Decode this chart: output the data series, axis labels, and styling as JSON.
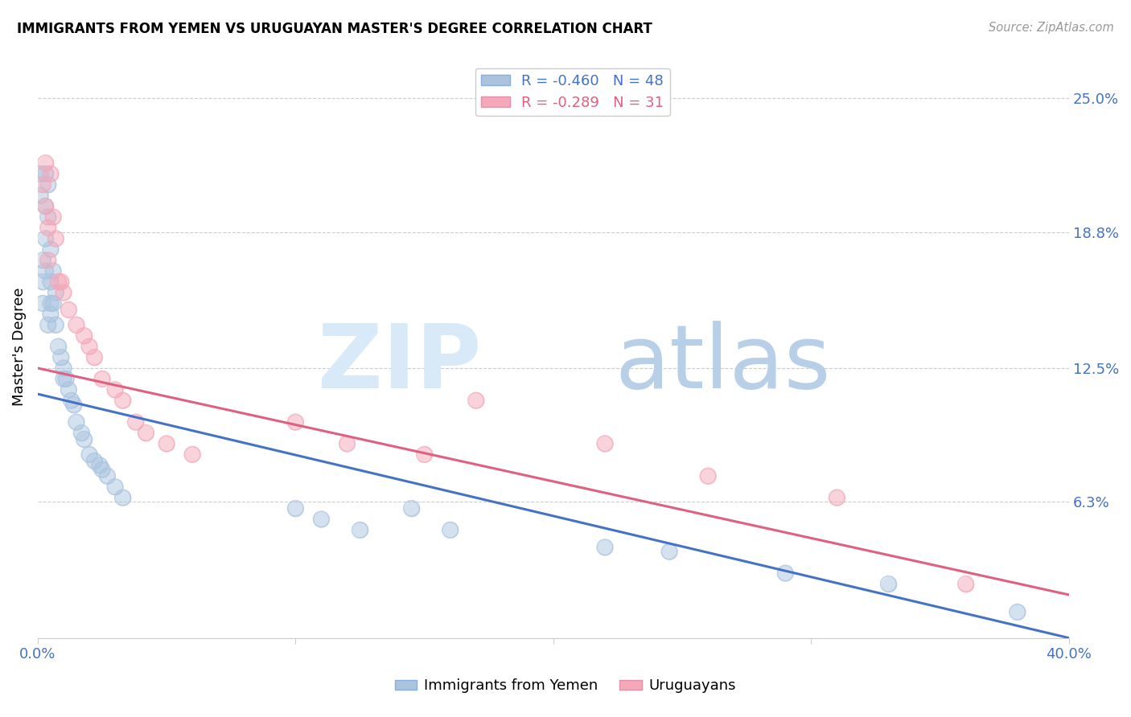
{
  "title": "IMMIGRANTS FROM YEMEN VS URUGUAYAN MASTER'S DEGREE CORRELATION CHART",
  "source": "Source: ZipAtlas.com",
  "ylabel": "Master's Degree",
  "yticks": [
    0.0,
    0.063,
    0.125,
    0.188,
    0.25
  ],
  "ytick_labels": [
    "",
    "6.3%",
    "12.5%",
    "18.8%",
    "25.0%"
  ],
  "xticks": [
    0.0,
    0.1,
    0.2,
    0.3,
    0.4
  ],
  "xtick_labels": [
    "0.0%",
    "",
    "",
    "",
    "40.0%"
  ],
  "xlim": [
    0.0,
    0.4
  ],
  "ylim": [
    0.0,
    0.27
  ],
  "blue_scatter_x": [
    0.001,
    0.001,
    0.002,
    0.002,
    0.002,
    0.003,
    0.003,
    0.003,
    0.003,
    0.004,
    0.004,
    0.004,
    0.005,
    0.005,
    0.005,
    0.005,
    0.006,
    0.006,
    0.007,
    0.007,
    0.008,
    0.009,
    0.01,
    0.01,
    0.011,
    0.012,
    0.013,
    0.014,
    0.015,
    0.017,
    0.018,
    0.02,
    0.022,
    0.024,
    0.025,
    0.027,
    0.03,
    0.033,
    0.1,
    0.11,
    0.125,
    0.145,
    0.16,
    0.22,
    0.245,
    0.29,
    0.33,
    0.38
  ],
  "blue_scatter_y": [
    0.215,
    0.205,
    0.175,
    0.165,
    0.155,
    0.215,
    0.2,
    0.185,
    0.17,
    0.21,
    0.195,
    0.145,
    0.18,
    0.165,
    0.155,
    0.15,
    0.17,
    0.155,
    0.16,
    0.145,
    0.135,
    0.13,
    0.125,
    0.12,
    0.12,
    0.115,
    0.11,
    0.108,
    0.1,
    0.095,
    0.092,
    0.085,
    0.082,
    0.08,
    0.078,
    0.075,
    0.07,
    0.065,
    0.06,
    0.055,
    0.05,
    0.06,
    0.05,
    0.042,
    0.04,
    0.03,
    0.025,
    0.012
  ],
  "pink_scatter_x": [
    0.002,
    0.003,
    0.003,
    0.004,
    0.004,
    0.005,
    0.006,
    0.007,
    0.008,
    0.009,
    0.01,
    0.012,
    0.015,
    0.018,
    0.02,
    0.022,
    0.025,
    0.03,
    0.033,
    0.038,
    0.042,
    0.05,
    0.06,
    0.1,
    0.12,
    0.15,
    0.17,
    0.22,
    0.26,
    0.31,
    0.36
  ],
  "pink_scatter_y": [
    0.21,
    0.22,
    0.2,
    0.19,
    0.175,
    0.215,
    0.195,
    0.185,
    0.165,
    0.165,
    0.16,
    0.152,
    0.145,
    0.14,
    0.135,
    0.13,
    0.12,
    0.115,
    0.11,
    0.1,
    0.095,
    0.09,
    0.085,
    0.1,
    0.09,
    0.085,
    0.11,
    0.09,
    0.075,
    0.065,
    0.025
  ],
  "blue_line_x": [
    0.0,
    0.4
  ],
  "blue_line_y": [
    0.113,
    0.0
  ],
  "pink_line_x": [
    0.0,
    0.4
  ],
  "pink_line_y": [
    0.125,
    0.02
  ],
  "scatter_color_blue": "#aac4e0",
  "scatter_color_pink": "#f4a8b8",
  "line_color_blue": "#4472c4",
  "line_color_pink": "#e06080",
  "text_color_blue": "#4472c4",
  "background_color": "#ffffff",
  "grid_color": "#cccccc"
}
